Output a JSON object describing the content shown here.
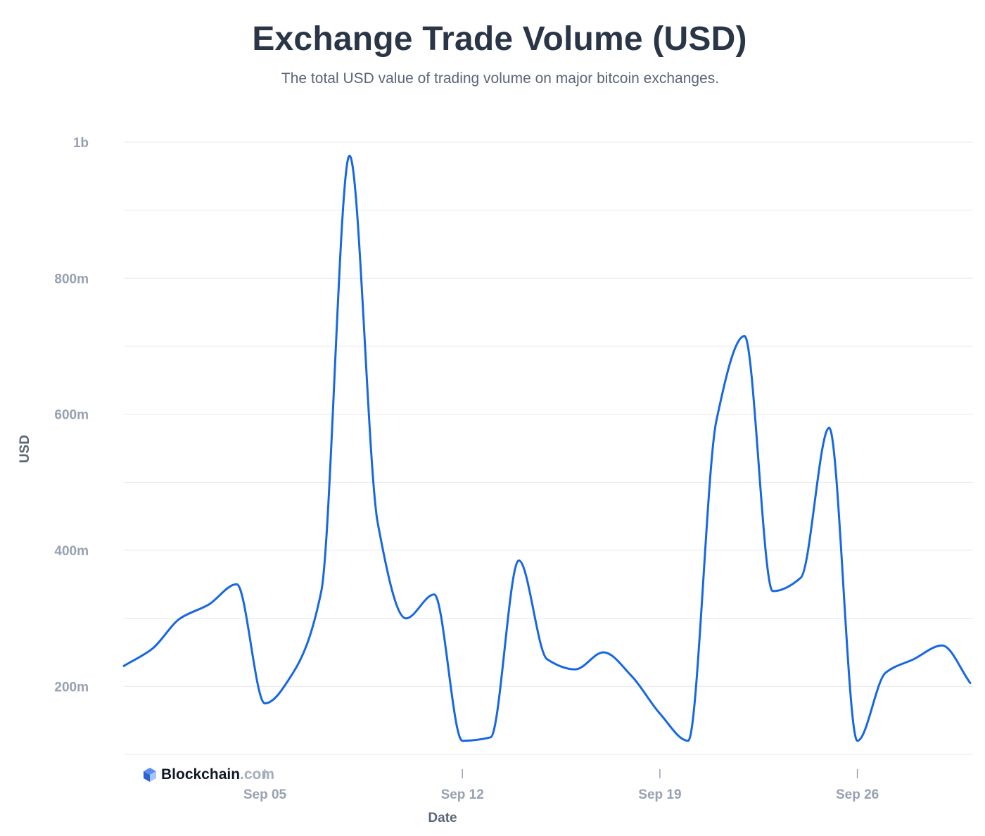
{
  "header": {
    "title": "Exchange Trade Volume (USD)",
    "subtitle": "The total USD value of trading volume on major bitcoin exchanges."
  },
  "brand": {
    "name": "Blockchain",
    "domain": ".com",
    "icon": "blockchain-cube-icon",
    "icon_colors": [
      "#2a62d6",
      "#5b8def",
      "#a8c4fa"
    ]
  },
  "colors": {
    "series": "#1767e3",
    "grid": "#e6e8ec",
    "tick_label": "#98a1b1",
    "axis_title": "#5b6577",
    "title": "#2a3547"
  },
  "chart_data": {
    "type": "line",
    "title": "Exchange Trade Volume (USD)",
    "subtitle": "The total USD value of trading volume on major bitcoin exchanges.",
    "xlabel": "Date",
    "ylabel": "USD",
    "x": [
      "Aug 31",
      "Sep 01",
      "Sep 02",
      "Sep 03",
      "Sep 04",
      "Sep 05",
      "Sep 06",
      "Sep 07",
      "Sep 08",
      "Sep 09",
      "Sep 10",
      "Sep 11",
      "Sep 12",
      "Sep 13",
      "Sep 14",
      "Sep 15",
      "Sep 16",
      "Sep 17",
      "Sep 18",
      "Sep 19",
      "Sep 20",
      "Sep 21",
      "Sep 22",
      "Sep 23",
      "Sep 24",
      "Sep 25",
      "Sep 26",
      "Sep 27",
      "Sep 28",
      "Sep 29",
      "Sep 30"
    ],
    "series": [
      {
        "values": [
          230000000,
          255000000,
          300000000,
          320000000,
          350000000,
          175000000,
          220000000,
          340000000,
          980000000,
          440000000,
          300000000,
          335000000,
          120000000,
          125000000,
          385000000,
          240000000,
          225000000,
          250000000,
          215000000,
          160000000,
          120000000,
          590000000,
          715000000,
          340000000,
          360000000,
          580000000,
          120000000,
          220000000,
          240000000,
          260000000,
          205000000
        ]
      }
    ],
    "x_ticks": [
      "Sep 05",
      "Sep 12",
      "Sep 19",
      "Sep 26"
    ],
    "y_ticks": [
      200000000,
      400000000,
      600000000,
      800000000,
      1000000000
    ],
    "y_tick_labels": [
      "200m",
      "400m",
      "600m",
      "800m",
      "1b"
    ],
    "ylim": [
      100000000,
      1000000000
    ],
    "grid": true,
    "legend": "none"
  }
}
